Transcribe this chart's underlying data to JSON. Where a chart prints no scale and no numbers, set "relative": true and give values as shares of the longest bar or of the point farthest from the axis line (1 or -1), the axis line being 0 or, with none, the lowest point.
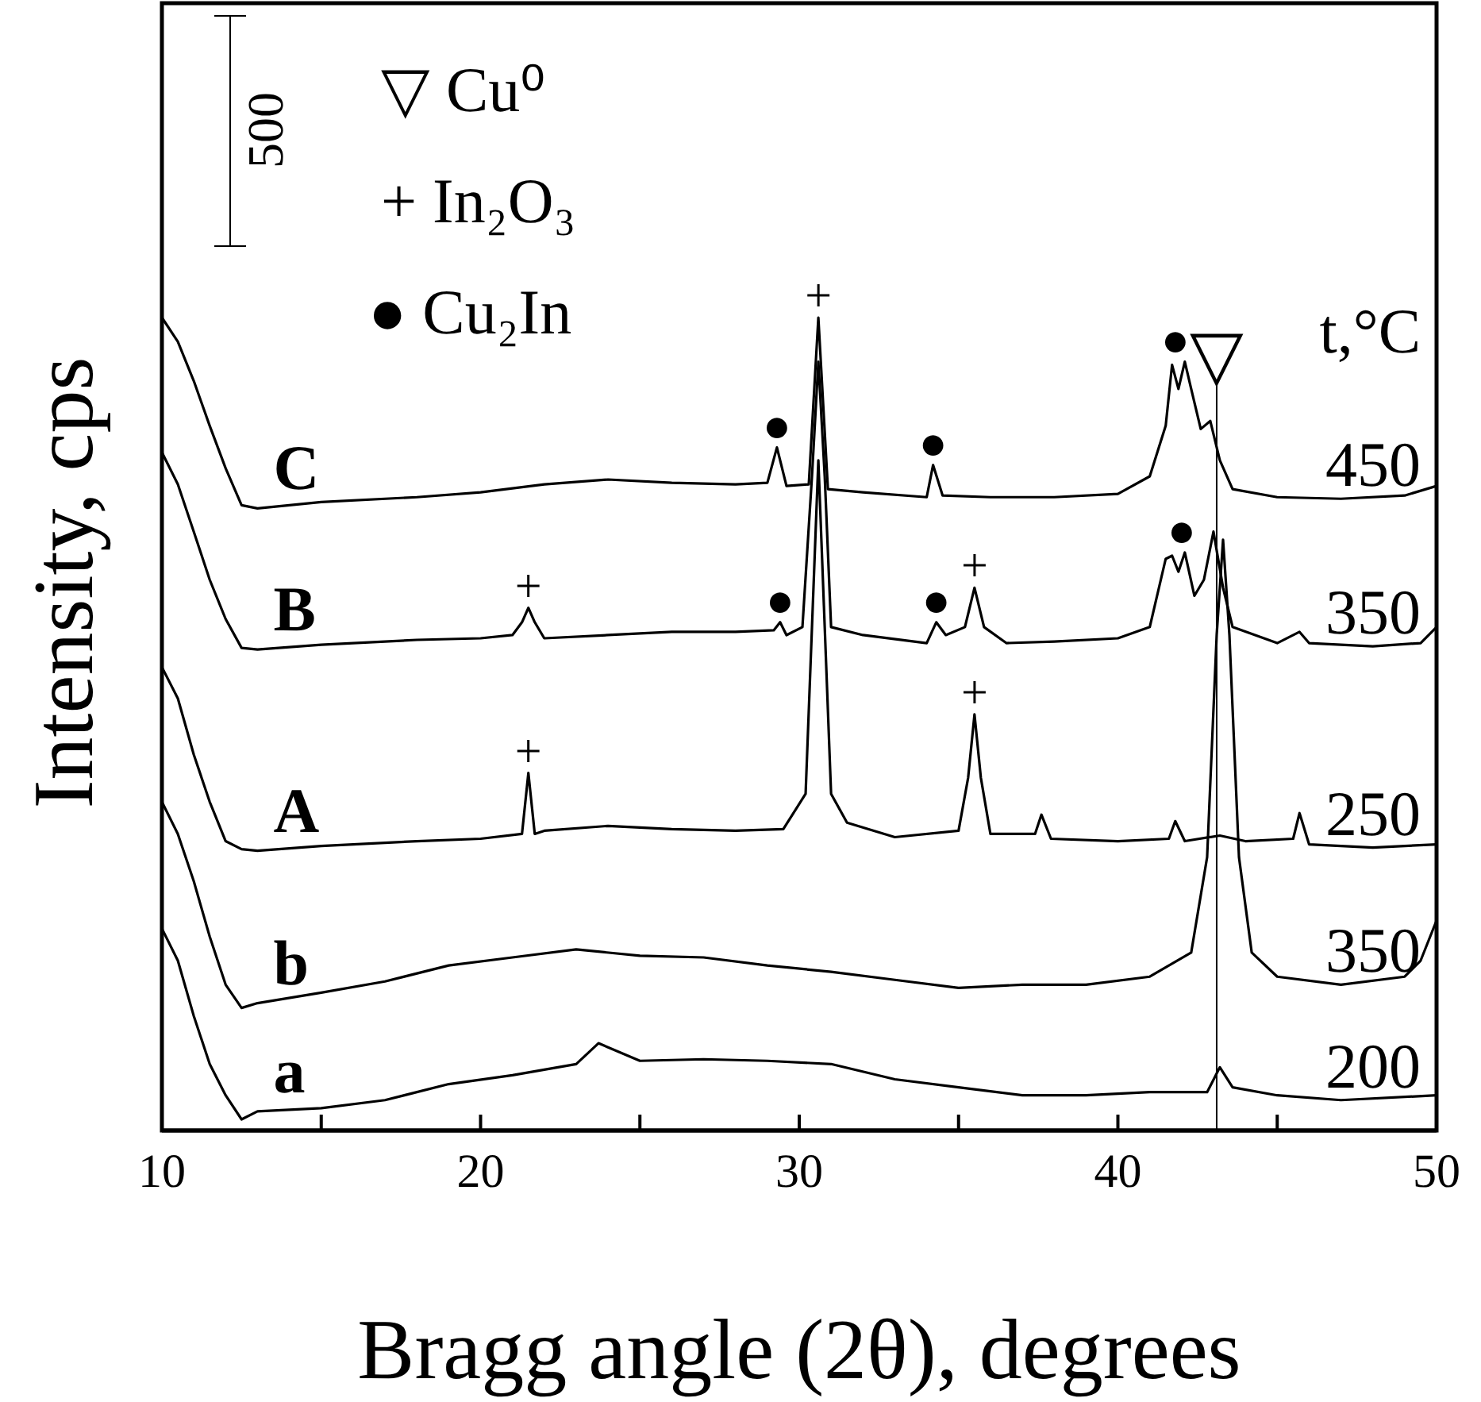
{
  "chart_data": {
    "type": "line",
    "relative": true,
    "xlabel": "Bragg angle (2θ), degrees",
    "ylabel": "Intensity, cps",
    "xlim": [
      10,
      50
    ],
    "xticks": [
      10,
      {
        "value": 15,
        "label": null
      },
      20,
      {
        "value": 25,
        "label": null
      },
      30,
      {
        "value": 35,
        "label": null
      },
      40,
      {
        "value": 45,
        "label": null
      },
      50
    ],
    "tick_labels": "x",
    "grid": false,
    "marker": "none",
    "line_style": "solid",
    "series": [
      {
        "name": "C",
        "color": "#000000",
        "x": [
          10,
          10.5,
          11,
          11.5,
          12,
          12.5,
          13,
          15,
          18,
          20,
          22,
          24,
          26,
          28,
          29,
          29.3,
          29.6,
          30.3,
          30.6,
          30.9,
          32,
          34,
          34.2,
          34.5,
          36,
          38,
          40,
          41,
          41.5,
          41.7,
          41.9,
          42.1,
          42.3,
          42.6,
          42.9,
          43.2,
          43.6,
          45,
          47,
          49,
          50
        ],
        "values": [
          1.0,
          0.97,
          0.921,
          0.865,
          0.812,
          0.766,
          0.762,
          0.77,
          0.776,
          0.782,
          0.792,
          0.798,
          0.794,
          0.792,
          0.794,
          0.838,
          0.79,
          0.792,
          1.0,
          0.786,
          0.782,
          0.776,
          0.816,
          0.778,
          0.776,
          0.776,
          0.78,
          0.802,
          0.865,
          0.941,
          0.911,
          0.945,
          0.911,
          0.861,
          0.871,
          0.822,
          0.786,
          0.776,
          0.774,
          0.778,
          0.79
        ]
      },
      {
        "name": "B",
        "color": "#000000",
        "x": [
          10,
          10.5,
          11,
          11.5,
          12,
          12.5,
          13,
          15,
          18,
          20,
          21,
          21.3,
          21.5,
          21.7,
          22,
          24,
          26,
          28,
          29.2,
          29.4,
          29.6,
          30.1,
          30.4,
          30.6,
          30.8,
          31,
          32,
          34,
          34.3,
          34.6,
          35.2,
          35.5,
          35.8,
          36.5,
          38,
          40,
          41,
          41.5,
          41.7,
          41.9,
          42.1,
          42.4,
          42.7,
          43.0,
          43.3,
          43.6,
          45,
          45.7,
          46,
          48,
          49.5,
          50
        ],
        "values": [
          0.832,
          0.792,
          0.733,
          0.673,
          0.624,
          0.588,
          0.586,
          0.592,
          0.598,
          0.6,
          0.604,
          0.62,
          0.638,
          0.62,
          0.6,
          0.604,
          0.608,
          0.608,
          0.61,
          0.62,
          0.604,
          0.614,
          0.802,
          0.945,
          0.802,
          0.614,
          0.604,
          0.594,
          0.62,
          0.604,
          0.614,
          0.663,
          0.614,
          0.594,
          0.596,
          0.6,
          0.614,
          0.699,
          0.703,
          0.683,
          0.707,
          0.653,
          0.673,
          0.733,
          0.663,
          0.614,
          0.594,
          0.608,
          0.594,
          0.59,
          0.594,
          0.614
        ]
      },
      {
        "name": "A",
        "color": "#000000",
        "x": [
          10,
          10.5,
          11,
          11.5,
          12,
          12.5,
          13,
          15,
          18,
          20,
          21.3,
          21.5,
          21.7,
          22,
          24,
          26,
          28,
          29.5,
          30.2,
          30.6,
          31,
          31.5,
          33,
          35,
          35.3,
          35.5,
          35.7,
          36,
          37.4,
          37.6,
          37.9,
          40,
          41.6,
          41.8,
          42.1,
          43.2,
          44,
          45.5,
          45.7,
          46,
          48,
          50
        ],
        "values": [
          0.564,
          0.525,
          0.455,
          0.396,
          0.347,
          0.337,
          0.335,
          0.341,
          0.347,
          0.35,
          0.356,
          0.432,
          0.356,
          0.36,
          0.366,
          0.362,
          0.36,
          0.362,
          0.406,
          0.822,
          0.406,
          0.37,
          0.352,
          0.36,
          0.426,
          0.505,
          0.426,
          0.356,
          0.356,
          0.38,
          0.35,
          0.347,
          0.35,
          0.372,
          0.347,
          0.354,
          0.347,
          0.35,
          0.382,
          0.343,
          0.339,
          0.343
        ]
      },
      {
        "name": "b",
        "color": "#000000",
        "x": [
          10,
          10.5,
          11,
          11.5,
          12,
          12.5,
          13,
          15,
          17,
          19,
          21,
          23,
          25,
          27,
          29,
          31,
          33,
          35,
          37,
          39,
          41,
          42.3,
          42.8,
          43.1,
          43.3,
          43.5,
          43.8,
          44.2,
          45,
          47,
          49,
          49.5,
          50
        ],
        "values": [
          0.396,
          0.356,
          0.297,
          0.228,
          0.168,
          0.139,
          0.145,
          0.158,
          0.172,
          0.192,
          0.202,
          0.212,
          0.204,
          0.202,
          0.192,
          0.184,
          0.174,
          0.164,
          0.168,
          0.168,
          0.178,
          0.208,
          0.327,
          0.604,
          0.723,
          0.604,
          0.327,
          0.208,
          0.178,
          0.168,
          0.178,
          0.198,
          0.248
        ]
      },
      {
        "name": "a",
        "color": "#000000",
        "x": [
          10,
          10.5,
          11,
          11.5,
          12,
          12.5,
          13,
          15,
          17,
          19,
          21,
          23,
          23.7,
          25,
          27,
          29,
          31,
          33,
          35,
          37,
          39,
          41,
          42.8,
          43.2,
          43.6,
          45,
          47,
          50
        ],
        "values": [
          0.238,
          0.198,
          0.129,
          0.069,
          0.03,
          0,
          0.01,
          0.014,
          0.024,
          0.044,
          0.055,
          0.069,
          0.095,
          0.073,
          0.075,
          0.073,
          0.069,
          0.05,
          0.04,
          0.03,
          0.03,
          0.034,
          0.034,
          0.065,
          0.04,
          0.03,
          0.024,
          0.03
        ]
      }
    ],
    "ref_lines": [
      {
        "axis": "x",
        "value": 43.1,
        "label": "▽"
      }
    ],
    "annotations": [
      "▽ Cu⁰",
      "+ In₂O₃",
      "● Cu₂In",
      "500",
      "t,°C",
      "450",
      "350",
      "250",
      "350",
      "200",
      {
        "text": "+",
        "x": 30.6,
        "y": 1.0
      },
      {
        "text": "●",
        "x": 29.3,
        "y": 0.838
      },
      {
        "text": "●",
        "x": 34.2,
        "y": 0.816
      },
      {
        "text": "●",
        "x": 41.8,
        "y": 0.945
      },
      {
        "text": "+",
        "x": 21.5,
        "y": 0.638
      },
      {
        "text": "●",
        "x": 29.4,
        "y": 0.62
      },
      {
        "text": "●",
        "x": 34.3,
        "y": 0.62
      },
      {
        "text": "+",
        "x": 35.5,
        "y": 0.663
      },
      {
        "text": "●",
        "x": 42.0,
        "y": 0.707
      },
      {
        "text": "+",
        "x": 21.5,
        "y": 0.432
      },
      {
        "text": "+",
        "x": 35.5,
        "y": 0.505
      }
    ]
  }
}
